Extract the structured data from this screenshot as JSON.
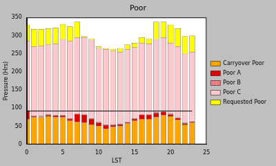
{
  "chart_data": {
    "type": "bar",
    "title": "Poor",
    "x_label": "LST",
    "y_label": "Pressure (Hrs)",
    "x": [
      0,
      1,
      2,
      3,
      4,
      5,
      6,
      7,
      8,
      9,
      10,
      11,
      12,
      13,
      14,
      15,
      16,
      17,
      18,
      19,
      20,
      21,
      22,
      23
    ],
    "series": [
      {
        "name": "Carryover Poor",
        "color": "#ffa500",
        "values": [
          70,
          75,
          75,
          78,
          75,
          75,
          65,
          62,
          60,
          55,
          50,
          43,
          48,
          50,
          58,
          65,
          70,
          70,
          75,
          80,
          78,
          68,
          55,
          60
        ]
      },
      {
        "name": "Poor A",
        "color": "#e00000",
        "values": [
          22,
          3,
          2,
          3,
          5,
          5,
          5,
          22,
          22,
          15,
          10,
          10,
          5,
          5,
          3,
          5,
          12,
          12,
          12,
          10,
          5,
          5,
          3,
          3
        ]
      },
      {
        "name": "Poor B",
        "color": "#f08080",
        "values": [
          2,
          2,
          2,
          2,
          2,
          2,
          2,
          2,
          2,
          2,
          2,
          2,
          2,
          2,
          2,
          2,
          2,
          2,
          2,
          2,
          2,
          2,
          2,
          2
        ]
      },
      {
        "name": "Poor C",
        "color": "#ffc8cc",
        "values": [
          191,
          190,
          193,
          192,
          196,
          208,
          213,
          209,
          211,
          216,
          203,
          207,
          203,
          198,
          199,
          196,
          196,
          194,
          201,
          203,
          195,
          195,
          190,
          190
        ]
      },
      {
        "name": "Requested Poor",
        "color": "#ffff00",
        "values": [
          45,
          48,
          46,
          45,
          44,
          42,
          40,
          43,
          3,
          4,
          5,
          3,
          5,
          10,
          13,
          12,
          15,
          14,
          48,
          43,
          50,
          50,
          48,
          45
        ]
      },
      {
        "type": "line",
        "color": "#000000",
        "x": [
          0,
          23
        ],
        "values": [
          92,
          92
        ]
      }
    ],
    "xlim": [
      0,
      25
    ],
    "xticks": [
      0,
      5,
      10,
      15,
      20,
      25
    ],
    "ylim": [
      0,
      350
    ],
    "yticks": [
      0,
      50,
      100,
      150,
      200,
      250,
      300,
      350
    ],
    "stacked": true,
    "grid": false,
    "legend": "right"
  }
}
